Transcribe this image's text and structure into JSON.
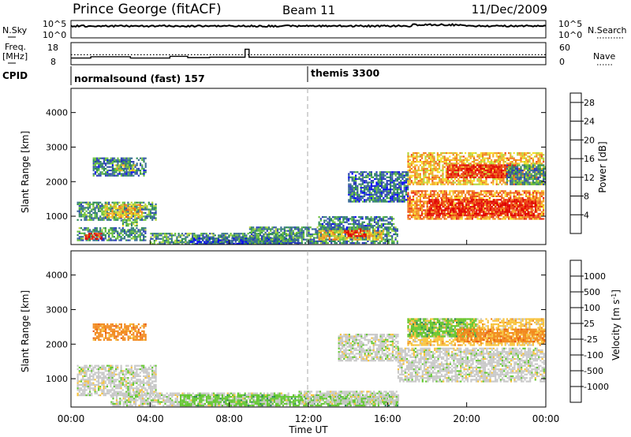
{
  "header": {
    "station": "Prince George (fitACF)",
    "beam": "Beam 11",
    "date": "11/Dec/2009"
  },
  "noise_panel": {
    "left_label": "N.Sky",
    "right_label": "N.Search",
    "left_ticks": [
      "10^5",
      "10^0"
    ],
    "right_ticks": [
      "10^5",
      "10^0"
    ]
  },
  "freq_panel": {
    "left_label_1": "Freq.",
    "left_label_2": "[MHz]",
    "right_label": "Nave",
    "left_ticks": [
      "18",
      "8"
    ],
    "right_ticks": [
      "60",
      "0"
    ],
    "ylim_freq": [
      8,
      18
    ],
    "ylim_nave": [
      0,
      60
    ],
    "freq_steps": [
      [
        0.0,
        11.0
      ],
      [
        1.0,
        11.0
      ],
      [
        1.0,
        11.6
      ],
      [
        3.0,
        11.6
      ],
      [
        3.0,
        11.0
      ],
      [
        5.0,
        11.0
      ],
      [
        5.0,
        11.8
      ],
      [
        5.9,
        11.8
      ],
      [
        5.9,
        11.2
      ],
      [
        7.0,
        11.2
      ],
      [
        7.0,
        11.4
      ],
      [
        8.8,
        11.4
      ],
      [
        8.8,
        15.0
      ],
      [
        9.0,
        15.0
      ],
      [
        9.0,
        11.4
      ],
      [
        24.0,
        11.4
      ]
    ],
    "nave_level": 27
  },
  "cpid": {
    "label": "CPID",
    "segments": [
      {
        "name": "normalsound (fast) 157",
        "start": 0
      },
      {
        "name": "themis 3300",
        "start": 12
      }
    ]
  },
  "xaxis": {
    "label": "Time UT",
    "ticks": [
      "00:00",
      "04:00",
      "08:00",
      "12:00",
      "16:00",
      "20:00",
      "00:00"
    ],
    "range_hours": [
      0,
      24
    ]
  },
  "chart_data": [
    {
      "type": "heatmap",
      "quantity": "Power",
      "ylabel": "Slant Range [km]",
      "yticks": [
        1000,
        2000,
        3000,
        4000
      ],
      "ylim": [
        180,
        4700
      ],
      "colorbar": {
        "label": "Power [dB]",
        "ticks": [
          "28",
          "24",
          "20",
          "16",
          "12",
          "8",
          "4"
        ],
        "range": [
          0,
          30
        ],
        "colors": [
          "#0000ff",
          "#2a3cb8",
          "#3a6e96",
          "#2e8b57",
          "#66c03a",
          "#b6d43a",
          "#f4dd2a",
          "#f6a623",
          "#f07a1c",
          "#ec4a16",
          "#e81f12",
          "#e00000"
        ]
      },
      "patches": [
        {
          "t": [
            0.3,
            3.8
          ],
          "r": [
            300,
            680
          ],
          "v": 8
        },
        {
          "t": [
            0.7,
            1.5
          ],
          "r": [
            330,
            520
          ],
          "v": 26
        },
        {
          "t": [
            0.3,
            4.3
          ],
          "r": [
            900,
            1420
          ],
          "v": 9
        },
        {
          "t": [
            1.7,
            3.6
          ],
          "r": [
            950,
            1350
          ],
          "v": 18
        },
        {
          "t": [
            2.5,
            3.3
          ],
          "r": [
            700,
            900
          ],
          "v": 12
        },
        {
          "t": [
            1.1,
            3.8
          ],
          "r": [
            2150,
            2700
          ],
          "v": 7
        },
        {
          "t": [
            2.2,
            3.2
          ],
          "r": [
            2300,
            2500
          ],
          "v": 14
        },
        {
          "t": [
            4.0,
            11.5
          ],
          "r": [
            200,
            520
          ],
          "v": 9
        },
        {
          "t": [
            6.0,
            11.5
          ],
          "r": [
            200,
            380
          ],
          "v": 4
        },
        {
          "t": [
            9.0,
            16.5
          ],
          "r": [
            200,
            700
          ],
          "v": 8
        },
        {
          "t": [
            12.5,
            15.8
          ],
          "r": [
            300,
            600
          ],
          "v": 17
        },
        {
          "t": [
            13.8,
            15.0
          ],
          "r": [
            400,
            650
          ],
          "v": 27
        },
        {
          "t": [
            12.5,
            16.3
          ],
          "r": [
            620,
            1000
          ],
          "v": 7
        },
        {
          "t": [
            14.0,
            17.0
          ],
          "r": [
            1400,
            2300
          ],
          "v": 6
        },
        {
          "t": [
            17.0,
            23.9
          ],
          "r": [
            900,
            1750
          ],
          "v": 21
        },
        {
          "t": [
            18.0,
            23.5
          ],
          "r": [
            1000,
            1500
          ],
          "v": 27
        },
        {
          "t": [
            17.0,
            23.9
          ],
          "r": [
            1900,
            2850
          ],
          "v": 18
        },
        {
          "t": [
            19.0,
            22.5
          ],
          "r": [
            2100,
            2500
          ],
          "v": 27
        },
        {
          "t": [
            22.0,
            24.0
          ],
          "r": [
            1900,
            2500
          ],
          "v": 8
        }
      ]
    },
    {
      "type": "heatmap",
      "quantity": "Velocity",
      "ylabel": "Slant Range [km]",
      "yticks": [
        1000,
        2000,
        3000,
        4000
      ],
      "ylim": [
        180,
        4700
      ],
      "colorbar": {
        "label": "Velocity [m s^-1]",
        "ticks": [
          "1000",
          "500",
          "100",
          "25",
          "-25",
          "-100",
          "-500",
          "-1000"
        ],
        "colors": [
          "#1f3cc8",
          "#2a5aa8",
          "#2e8b57",
          "#64c832",
          "#c8c8c8",
          "#f7c23a",
          "#f28a1e",
          "#e85a14",
          "#e00000"
        ]
      },
      "patches": [
        {
          "t": [
            0.3,
            4.3
          ],
          "r": [
            500,
            1400
          ],
          "c": 4
        },
        {
          "t": [
            2.0,
            11.0
          ],
          "r": [
            200,
            600
          ],
          "c": 4
        },
        {
          "t": [
            5.5,
            16.5
          ],
          "r": [
            200,
            550
          ],
          "c": 3
        },
        {
          "t": [
            11.5,
            16.5
          ],
          "r": [
            250,
            650
          ],
          "c": 4
        },
        {
          "t": [
            1.1,
            3.8
          ],
          "r": [
            2100,
            2600
          ],
          "c": 6
        },
        {
          "t": [
            13.5,
            16.5
          ],
          "r": [
            1500,
            2300
          ],
          "c": 4
        },
        {
          "t": [
            16.5,
            23.9
          ],
          "r": [
            900,
            1900
          ],
          "c": 4
        },
        {
          "t": [
            17.0,
            23.9
          ],
          "r": [
            1950,
            2750
          ],
          "c": 5
        },
        {
          "t": [
            17.0,
            20.5
          ],
          "r": [
            2200,
            2750
          ],
          "c": 3
        },
        {
          "t": [
            19.5,
            23.9
          ],
          "r": [
            2050,
            2450
          ],
          "c": 6
        }
      ]
    }
  ]
}
